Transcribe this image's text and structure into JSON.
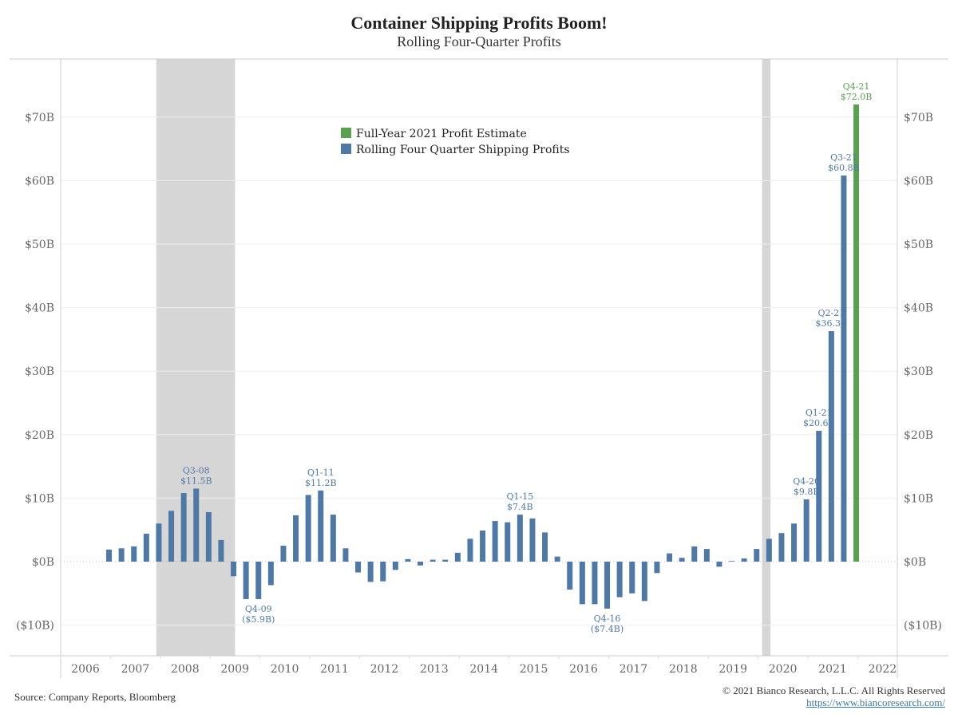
{
  "chart_data": {
    "type": "bar",
    "title": "Container Shipping Profits Boom!",
    "subtitle": "Rolling Four-Quarter Profits",
    "xlabel": "",
    "ylabel": "",
    "ylim": [
      -15,
      79
    ],
    "yticks": [
      {
        "value": 70,
        "label": "$70B"
      },
      {
        "value": 60,
        "label": "$60B"
      },
      {
        "value": 50,
        "label": "$50B"
      },
      {
        "value": 40,
        "label": "$40B"
      },
      {
        "value": 30,
        "label": "$30B"
      },
      {
        "value": 20,
        "label": "$20B"
      },
      {
        "value": 10,
        "label": "$10B"
      },
      {
        "value": 0,
        "label": "$0B"
      },
      {
        "value": -10,
        "label": "($10B)"
      }
    ],
    "xticks": [
      "2006",
      "2007",
      "2008",
      "2009",
      "2010",
      "2011",
      "2012",
      "2013",
      "2014",
      "2015",
      "2016",
      "2017",
      "2018",
      "2019",
      "2020",
      "2021",
      "2022"
    ],
    "x_range_years": [
      2006,
      2023
    ],
    "grid": true,
    "legend_position": "top-center",
    "legend": [
      {
        "name": "Full-Year 2021 Profit Estimate",
        "color": "#59a14f"
      },
      {
        "name": "Rolling Four Quarter Shipping Profits",
        "color": "#4e79a7"
      }
    ],
    "recessions": [
      {
        "start": 2007.92,
        "end": 2009.5
      },
      {
        "start": 2020.08,
        "end": 2020.25
      }
    ],
    "series": [
      {
        "name": "Rolling Four Quarter Shipping Profits",
        "color": "#4e79a7",
        "points": [
          {
            "q": "Q4-06",
            "value": 1.9
          },
          {
            "q": "Q1-07",
            "value": 2.1
          },
          {
            "q": "Q2-07",
            "value": 2.4
          },
          {
            "q": "Q3-07",
            "value": 4.4
          },
          {
            "q": "Q4-07",
            "value": 6.0
          },
          {
            "q": "Q1-08",
            "value": 8.0
          },
          {
            "q": "Q2-08",
            "value": 10.8
          },
          {
            "q": "Q3-08",
            "value": 11.5
          },
          {
            "q": "Q4-08",
            "value": 7.8
          },
          {
            "q": "Q1-09",
            "value": 3.4
          },
          {
            "q": "Q2-09",
            "value": -2.3
          },
          {
            "q": "Q3-09",
            "value": -5.9
          },
          {
            "q": "Q4-09",
            "value": -5.9
          },
          {
            "q": "Q1-10",
            "value": -3.7
          },
          {
            "q": "Q2-10",
            "value": 2.5
          },
          {
            "q": "Q3-10",
            "value": 7.3
          },
          {
            "q": "Q4-10",
            "value": 10.5
          },
          {
            "q": "Q1-11",
            "value": 11.2
          },
          {
            "q": "Q2-11",
            "value": 7.4
          },
          {
            "q": "Q3-11",
            "value": 2.1
          },
          {
            "q": "Q4-11",
            "value": -1.7
          },
          {
            "q": "Q1-12",
            "value": -3.2
          },
          {
            "q": "Q2-12",
            "value": -3.1
          },
          {
            "q": "Q3-12",
            "value": -1.3
          },
          {
            "q": "Q4-12",
            "value": 0.4
          },
          {
            "q": "Q1-13",
            "value": -0.6
          },
          {
            "q": "Q2-13",
            "value": 0.3
          },
          {
            "q": "Q3-13",
            "value": 0.3
          },
          {
            "q": "Q4-13",
            "value": 1.4
          },
          {
            "q": "Q1-14",
            "value": 3.6
          },
          {
            "q": "Q2-14",
            "value": 4.9
          },
          {
            "q": "Q3-14",
            "value": 6.4
          },
          {
            "q": "Q4-14",
            "value": 6.2
          },
          {
            "q": "Q1-15",
            "value": 7.4
          },
          {
            "q": "Q2-15",
            "value": 6.8
          },
          {
            "q": "Q3-15",
            "value": 4.6
          },
          {
            "q": "Q4-15",
            "value": 0.8
          },
          {
            "q": "Q1-16",
            "value": -4.4
          },
          {
            "q": "Q2-16",
            "value": -6.7
          },
          {
            "q": "Q3-16",
            "value": -6.7
          },
          {
            "q": "Q4-16",
            "value": -7.4
          },
          {
            "q": "Q1-17",
            "value": -5.6
          },
          {
            "q": "Q2-17",
            "value": -5.0
          },
          {
            "q": "Q3-17",
            "value": -6.2
          },
          {
            "q": "Q4-17",
            "value": -1.8
          },
          {
            "q": "Q1-18",
            "value": 1.3
          },
          {
            "q": "Q2-18",
            "value": 0.6
          },
          {
            "q": "Q3-18",
            "value": 2.4
          },
          {
            "q": "Q4-18",
            "value": 2.0
          },
          {
            "q": "Q1-19",
            "value": -0.8
          },
          {
            "q": "Q2-19",
            "value": 0.1
          },
          {
            "q": "Q3-19",
            "value": 0.5
          },
          {
            "q": "Q4-19",
            "value": 2.0
          },
          {
            "q": "Q1-20",
            "value": 3.6
          },
          {
            "q": "Q2-20",
            "value": 4.5
          },
          {
            "q": "Q3-20",
            "value": 6.0
          },
          {
            "q": "Q4-20",
            "value": 9.8
          },
          {
            "q": "Q1-21",
            "value": 20.6
          },
          {
            "q": "Q2-21",
            "value": 36.3
          },
          {
            "q": "Q3-21",
            "value": 60.8
          }
        ]
      },
      {
        "name": "Full-Year 2021 Profit Estimate",
        "color": "#59a14f",
        "points": [
          {
            "q": "Q4-21",
            "value": 72.0
          }
        ]
      }
    ],
    "annotations": [
      {
        "q": "Q3-08",
        "line1": "Q3-08",
        "line2": "$11.5B",
        "position": "above",
        "color": "#4e79a7"
      },
      {
        "q": "Q4-09",
        "line1": "Q4-09",
        "line2": "($5.9B)",
        "position": "below",
        "color": "#4e79a7"
      },
      {
        "q": "Q1-11",
        "line1": "Q1-11",
        "line2": "$11.2B",
        "position": "above",
        "color": "#4e79a7"
      },
      {
        "q": "Q1-15",
        "line1": "Q1-15",
        "line2": "$7.4B",
        "position": "above",
        "color": "#4e79a7"
      },
      {
        "q": "Q4-16",
        "line1": "Q4-16",
        "line2": "($7.4B)",
        "position": "below",
        "color": "#4e79a7"
      },
      {
        "q": "Q4-20",
        "line1": "Q4-20",
        "line2": "$9.8B",
        "position": "above",
        "color": "#4e79a7"
      },
      {
        "q": "Q1-21",
        "line1": "Q1-21",
        "line2": "$20.6B",
        "position": "above",
        "color": "#4e79a7"
      },
      {
        "q": "Q2-21",
        "line1": "Q2-21",
        "line2": "$36.3B",
        "position": "above",
        "color": "#4e79a7"
      },
      {
        "q": "Q3-21",
        "line1": "Q3-21",
        "line2": "$60.8B",
        "position": "above",
        "color": "#4e79a7"
      },
      {
        "q": "Q4-21",
        "line1": "Q4-21",
        "line2": "$72.0B",
        "position": "above",
        "color": "#59a14f"
      }
    ]
  },
  "footer": {
    "source": "Source: Company Reports, Bloomberg",
    "copyright": "© 2021 Bianco Research, L.L.C. All Rights Reserved",
    "url": "https://www.biancoresearch.com/"
  }
}
